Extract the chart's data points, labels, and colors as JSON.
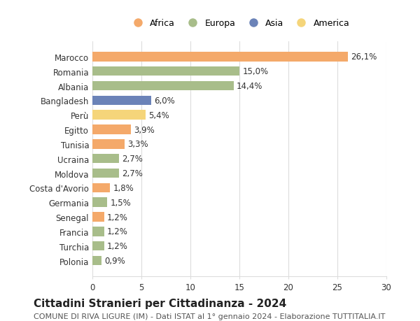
{
  "categories": [
    "Marocco",
    "Romania",
    "Albania",
    "Bangladesh",
    "Perù",
    "Egitto",
    "Tunisia",
    "Ucraina",
    "Moldova",
    "Costa d'Avorio",
    "Germania",
    "Senegal",
    "Francia",
    "Turchia",
    "Polonia"
  ],
  "values": [
    26.1,
    15.0,
    14.4,
    6.0,
    5.4,
    3.9,
    3.3,
    2.7,
    2.7,
    1.8,
    1.5,
    1.2,
    1.2,
    1.2,
    0.9
  ],
  "labels": [
    "26,1%",
    "15,0%",
    "14,4%",
    "6,0%",
    "5,4%",
    "3,9%",
    "3,3%",
    "2,7%",
    "2,7%",
    "1,8%",
    "1,5%",
    "1,2%",
    "1,2%",
    "1,2%",
    "0,9%"
  ],
  "continents": [
    "Africa",
    "Europa",
    "Europa",
    "Asia",
    "America",
    "Africa",
    "Africa",
    "Europa",
    "Europa",
    "Africa",
    "Europa",
    "Africa",
    "Europa",
    "Europa",
    "Europa"
  ],
  "continent_colors": {
    "Africa": "#F4A96A",
    "Europa": "#A8BD8A",
    "Asia": "#6B83B8",
    "America": "#F5D57A"
  },
  "legend_order": [
    "Africa",
    "Europa",
    "Asia",
    "America"
  ],
  "title": "Cittadini Stranieri per Cittadinanza - 2024",
  "subtitle": "COMUNE DI RIVA LIGURE (IM) - Dati ISTAT al 1° gennaio 2024 - Elaborazione TUTTITALIA.IT",
  "xlim": [
    0,
    30
  ],
  "xticks": [
    0,
    5,
    10,
    15,
    20,
    25,
    30
  ],
  "background_color": "#ffffff",
  "grid_color": "#dddddd",
  "label_fontsize": 8.5,
  "title_fontsize": 11,
  "subtitle_fontsize": 8
}
